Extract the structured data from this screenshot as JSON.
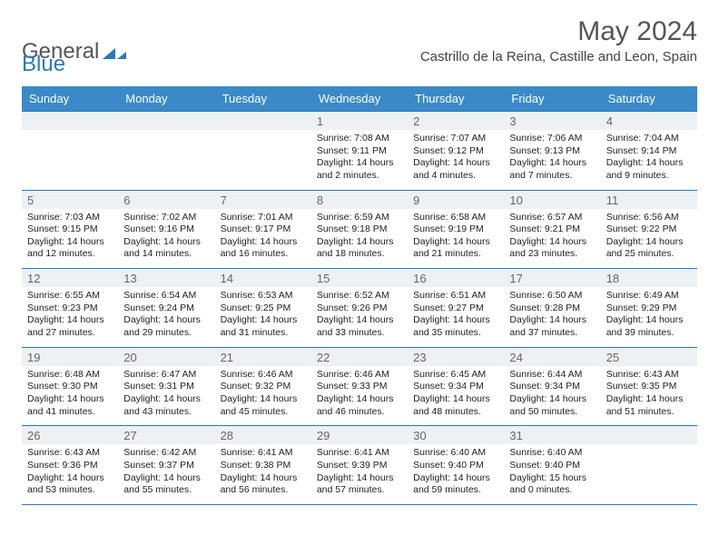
{
  "logo": {
    "text1": "General",
    "text2": "Blue"
  },
  "title": "May 2024",
  "location": "Castrillo de la Reina, Castille and Leon, Spain",
  "colors": {
    "header_bg": "#3a8ac8",
    "header_text": "#ffffff",
    "rule": "#2a79b8",
    "daynum_bg": "#eef1f3",
    "daynum_text": "#666666",
    "body_text": "#222222",
    "title_text": "#555555"
  },
  "typography": {
    "title_fontsize": 30,
    "location_fontsize": 15,
    "header_fontsize": 13,
    "daynum_fontsize": 13,
    "cell_fontsize": 10.5
  },
  "weekdays": [
    "Sunday",
    "Monday",
    "Tuesday",
    "Wednesday",
    "Thursday",
    "Friday",
    "Saturday"
  ],
  "weeks": [
    [
      null,
      null,
      null,
      {
        "n": "1",
        "sunrise": "7:08 AM",
        "sunset": "9:11 PM",
        "daylight": "14 hours and 2 minutes."
      },
      {
        "n": "2",
        "sunrise": "7:07 AM",
        "sunset": "9:12 PM",
        "daylight": "14 hours and 4 minutes."
      },
      {
        "n": "3",
        "sunrise": "7:06 AM",
        "sunset": "9:13 PM",
        "daylight": "14 hours and 7 minutes."
      },
      {
        "n": "4",
        "sunrise": "7:04 AM",
        "sunset": "9:14 PM",
        "daylight": "14 hours and 9 minutes."
      }
    ],
    [
      {
        "n": "5",
        "sunrise": "7:03 AM",
        "sunset": "9:15 PM",
        "daylight": "14 hours and 12 minutes."
      },
      {
        "n": "6",
        "sunrise": "7:02 AM",
        "sunset": "9:16 PM",
        "daylight": "14 hours and 14 minutes."
      },
      {
        "n": "7",
        "sunrise": "7:01 AM",
        "sunset": "9:17 PM",
        "daylight": "14 hours and 16 minutes."
      },
      {
        "n": "8",
        "sunrise": "6:59 AM",
        "sunset": "9:18 PM",
        "daylight": "14 hours and 18 minutes."
      },
      {
        "n": "9",
        "sunrise": "6:58 AM",
        "sunset": "9:19 PM",
        "daylight": "14 hours and 21 minutes."
      },
      {
        "n": "10",
        "sunrise": "6:57 AM",
        "sunset": "9:21 PM",
        "daylight": "14 hours and 23 minutes."
      },
      {
        "n": "11",
        "sunrise": "6:56 AM",
        "sunset": "9:22 PM",
        "daylight": "14 hours and 25 minutes."
      }
    ],
    [
      {
        "n": "12",
        "sunrise": "6:55 AM",
        "sunset": "9:23 PM",
        "daylight": "14 hours and 27 minutes."
      },
      {
        "n": "13",
        "sunrise": "6:54 AM",
        "sunset": "9:24 PM",
        "daylight": "14 hours and 29 minutes."
      },
      {
        "n": "14",
        "sunrise": "6:53 AM",
        "sunset": "9:25 PM",
        "daylight": "14 hours and 31 minutes."
      },
      {
        "n": "15",
        "sunrise": "6:52 AM",
        "sunset": "9:26 PM",
        "daylight": "14 hours and 33 minutes."
      },
      {
        "n": "16",
        "sunrise": "6:51 AM",
        "sunset": "9:27 PM",
        "daylight": "14 hours and 35 minutes."
      },
      {
        "n": "17",
        "sunrise": "6:50 AM",
        "sunset": "9:28 PM",
        "daylight": "14 hours and 37 minutes."
      },
      {
        "n": "18",
        "sunrise": "6:49 AM",
        "sunset": "9:29 PM",
        "daylight": "14 hours and 39 minutes."
      }
    ],
    [
      {
        "n": "19",
        "sunrise": "6:48 AM",
        "sunset": "9:30 PM",
        "daylight": "14 hours and 41 minutes."
      },
      {
        "n": "20",
        "sunrise": "6:47 AM",
        "sunset": "9:31 PM",
        "daylight": "14 hours and 43 minutes."
      },
      {
        "n": "21",
        "sunrise": "6:46 AM",
        "sunset": "9:32 PM",
        "daylight": "14 hours and 45 minutes."
      },
      {
        "n": "22",
        "sunrise": "6:46 AM",
        "sunset": "9:33 PM",
        "daylight": "14 hours and 46 minutes."
      },
      {
        "n": "23",
        "sunrise": "6:45 AM",
        "sunset": "9:34 PM",
        "daylight": "14 hours and 48 minutes."
      },
      {
        "n": "24",
        "sunrise": "6:44 AM",
        "sunset": "9:34 PM",
        "daylight": "14 hours and 50 minutes."
      },
      {
        "n": "25",
        "sunrise": "6:43 AM",
        "sunset": "9:35 PM",
        "daylight": "14 hours and 51 minutes."
      }
    ],
    [
      {
        "n": "26",
        "sunrise": "6:43 AM",
        "sunset": "9:36 PM",
        "daylight": "14 hours and 53 minutes."
      },
      {
        "n": "27",
        "sunrise": "6:42 AM",
        "sunset": "9:37 PM",
        "daylight": "14 hours and 55 minutes."
      },
      {
        "n": "28",
        "sunrise": "6:41 AM",
        "sunset": "9:38 PM",
        "daylight": "14 hours and 56 minutes."
      },
      {
        "n": "29",
        "sunrise": "6:41 AM",
        "sunset": "9:39 PM",
        "daylight": "14 hours and 57 minutes."
      },
      {
        "n": "30",
        "sunrise": "6:40 AM",
        "sunset": "9:40 PM",
        "daylight": "14 hours and 59 minutes."
      },
      {
        "n": "31",
        "sunrise": "6:40 AM",
        "sunset": "9:40 PM",
        "daylight": "15 hours and 0 minutes."
      },
      null
    ]
  ],
  "labels": {
    "sunrise": "Sunrise:",
    "sunset": "Sunset:",
    "daylight": "Daylight:"
  }
}
